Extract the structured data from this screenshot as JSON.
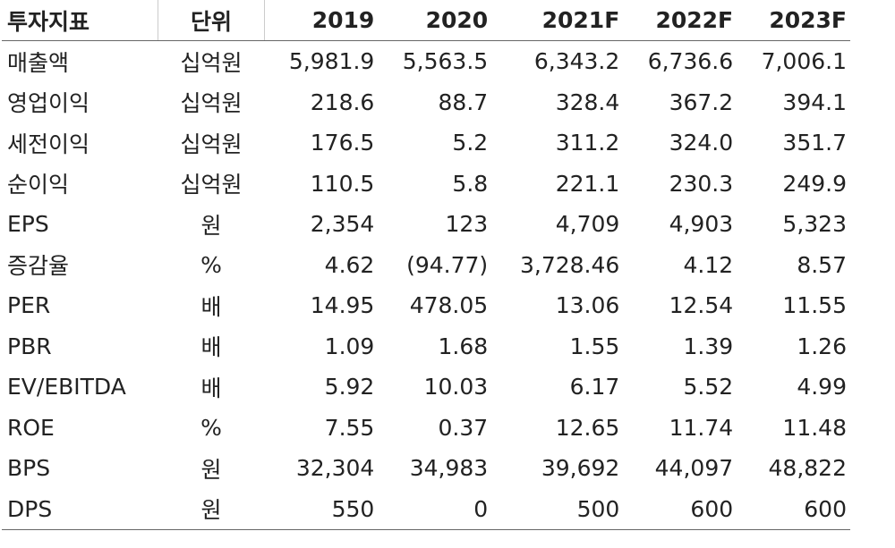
{
  "table": {
    "header": [
      "투자지표",
      "단위",
      "2019",
      "2020",
      "2021F",
      "2022F",
      "2023F"
    ],
    "rows": [
      [
        "매출액",
        "십억원",
        "5,981.9",
        "5,563.5",
        "6,343.2",
        "6,736.6",
        "7,006.1"
      ],
      [
        "영업이익",
        "십억원",
        "218.6",
        "88.7",
        "328.4",
        "367.2",
        "394.1"
      ],
      [
        "세전이익",
        "십억원",
        "176.5",
        "5.2",
        "311.2",
        "324.0",
        "351.7"
      ],
      [
        "순이익",
        "십억원",
        "110.5",
        "5.8",
        "221.1",
        "230.3",
        "249.9"
      ],
      [
        "EPS",
        "원",
        "2,354",
        "123",
        "4,709",
        "4,903",
        "5,323"
      ],
      [
        "증감율",
        "%",
        "4.62",
        "(94.77)",
        "3,728.46",
        "4.12",
        "8.57"
      ],
      [
        "PER",
        "배",
        "14.95",
        "478.05",
        "13.06",
        "12.54",
        "11.55"
      ],
      [
        "PBR",
        "배",
        "1.09",
        "1.68",
        "1.55",
        "1.39",
        "1.26"
      ],
      [
        "EV/EBITDA",
        "배",
        "5.92",
        "10.03",
        "6.17",
        "5.52",
        "4.99"
      ],
      [
        "ROE",
        "%",
        "7.55",
        "0.37",
        "12.65",
        "11.74",
        "11.48"
      ],
      [
        "BPS",
        "원",
        "32,304",
        "34,983",
        "39,692",
        "44,097",
        "48,822"
      ],
      [
        "DPS",
        "원",
        "550",
        "0",
        "500",
        "600",
        "600"
      ]
    ]
  }
}
